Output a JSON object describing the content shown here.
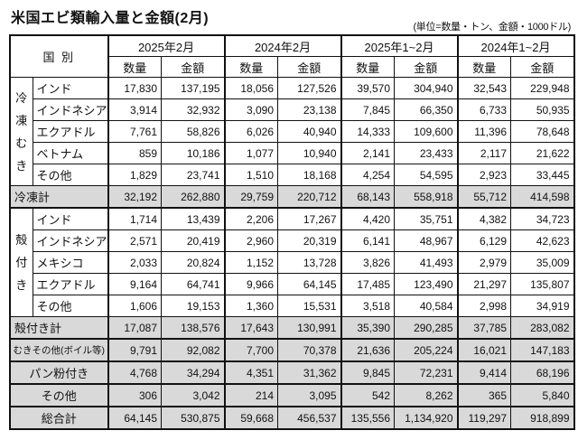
{
  "title": "米国エビ類輸入量と金額(2月)",
  "unit_note": "(単位=数量・トン、金額・1000ドル)",
  "colors": {
    "subtotal_bg": "#d9d9d9",
    "border": "#111111",
    "background": "#ffffff"
  },
  "table": {
    "corner_label": "国 別",
    "period_headers": [
      "2025年2月",
      "2024年2月",
      "2025年1~2月",
      "2024年1~2月"
    ],
    "measure_headers": [
      "数量",
      "金額"
    ],
    "groups": [
      {
        "label": "冷凍むき",
        "rows": [
          {
            "country": "インド",
            "values": [
              "17,830",
              "137,195",
              "18,056",
              "127,526",
              "39,570",
              "304,940",
              "32,543",
              "229,948"
            ]
          },
          {
            "country": "インドネシア",
            "values": [
              "3,914",
              "32,932",
              "3,090",
              "23,138",
              "7,845",
              "66,350",
              "6,733",
              "50,935"
            ]
          },
          {
            "country": "エクアドル",
            "values": [
              "7,761",
              "58,826",
              "6,026",
              "40,940",
              "14,333",
              "109,600",
              "11,396",
              "78,648"
            ]
          },
          {
            "country": "ベトナム",
            "values": [
              "859",
              "10,186",
              "1,077",
              "10,940",
              "2,141",
              "23,433",
              "2,117",
              "21,622"
            ]
          },
          {
            "country": "その他",
            "values": [
              "1,829",
              "23,741",
              "1,510",
              "18,168",
              "4,254",
              "54,595",
              "2,923",
              "33,445"
            ]
          }
        ],
        "subtotal": {
          "label": "冷凍計",
          "values": [
            "32,192",
            "262,880",
            "29,759",
            "220,712",
            "68,143",
            "558,918",
            "55,712",
            "414,598"
          ]
        }
      },
      {
        "label": "殻付き",
        "rows": [
          {
            "country": "インド",
            "values": [
              "1,714",
              "13,439",
              "2,206",
              "17,267",
              "4,420",
              "35,751",
              "4,382",
              "34,723"
            ]
          },
          {
            "country": "インドネシア",
            "values": [
              "2,571",
              "20,419",
              "2,960",
              "20,319",
              "6,141",
              "48,967",
              "6,129",
              "42,623"
            ]
          },
          {
            "country": "メキシコ",
            "values": [
              "2,033",
              "20,824",
              "1,152",
              "13,728",
              "3,826",
              "41,493",
              "2,979",
              "35,009"
            ]
          },
          {
            "country": "エクアドル",
            "values": [
              "9,164",
              "64,741",
              "9,966",
              "64,145",
              "17,485",
              "123,490",
              "21,297",
              "135,807"
            ]
          },
          {
            "country": "その他",
            "values": [
              "1,606",
              "19,153",
              "1,360",
              "15,531",
              "3,518",
              "40,584",
              "2,998",
              "34,919"
            ]
          }
        ],
        "subtotal": {
          "label": "殻付き計",
          "values": [
            "17,087",
            "138,576",
            "17,643",
            "130,991",
            "35,390",
            "290,285",
            "37,785",
            "283,082"
          ]
        }
      }
    ],
    "summary_rows": [
      {
        "label": "むきその他(ボイル等)",
        "values": [
          "9,791",
          "92,082",
          "7,700",
          "70,378",
          "21,636",
          "205,224",
          "16,021",
          "147,183"
        ]
      },
      {
        "label": "パン粉付き",
        "values": [
          "4,768",
          "34,294",
          "4,351",
          "31,362",
          "9,845",
          "72,231",
          "9,414",
          "68,196"
        ]
      },
      {
        "label": "その他",
        "values": [
          "306",
          "3,042",
          "214",
          "3,095",
          "542",
          "8,262",
          "365",
          "5,840"
        ]
      },
      {
        "label": "総合計",
        "values": [
          "64,145",
          "530,875",
          "59,668",
          "456,537",
          "135,556",
          "1,134,920",
          "119,297",
          "918,899"
        ]
      }
    ]
  }
}
